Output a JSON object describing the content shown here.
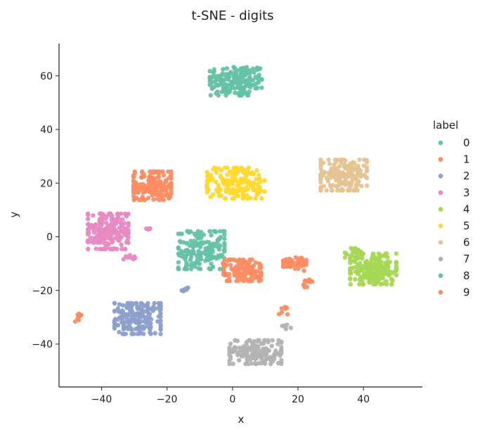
{
  "chart_data": {
    "type": "scatter",
    "title": "t-SNE - digits",
    "xlabel": "x",
    "ylabel": "y",
    "xlim": [
      -53,
      58
    ],
    "ylim": [
      -56,
      72
    ],
    "xticks": [
      -40,
      -20,
      0,
      20,
      40
    ],
    "yticks": [
      -40,
      -20,
      0,
      20,
      40,
      60
    ],
    "grid": false,
    "legend_title": "label",
    "legend_position": "right",
    "colors": {
      "0": "#66c2a5",
      "1": "#fc8d62",
      "2": "#8da0cb",
      "3": "#e78ac3",
      "4": "#a6d854",
      "5": "#ffd92f",
      "6": "#e5c494",
      "7": "#b3b3b3",
      "8": "#66c2a5",
      "9": "#fc8d62"
    },
    "series": [
      {
        "name": "0",
        "clusters": [
          {
            "cx": 1,
            "cy": 58,
            "rx": 9,
            "ry": 6,
            "n": 180
          }
        ]
      },
      {
        "name": "1",
        "clusters": [
          {
            "cx": -24.5,
            "cy": 19,
            "rx": 6.5,
            "ry": 6,
            "n": 180
          },
          {
            "cx": -47,
            "cy": -30,
            "rx": 1.2,
            "ry": 1.8,
            "n": 10
          },
          {
            "cx": 15.5,
            "cy": -28,
            "rx": 1.5,
            "ry": 2,
            "n": 8
          }
        ]
      },
      {
        "name": "2",
        "clusters": [
          {
            "cx": -29,
            "cy": -30.5,
            "rx": 8,
            "ry": 6.5,
            "n": 180
          },
          {
            "cx": -14.5,
            "cy": -19.5,
            "rx": 1.5,
            "ry": 1,
            "n": 8
          }
        ]
      },
      {
        "name": "3",
        "clusters": [
          {
            "cx": -38,
            "cy": 2,
            "rx": 7,
            "ry": 7.5,
            "n": 180
          },
          {
            "cx": -31.5,
            "cy": -7.5,
            "rx": 2,
            "ry": 1,
            "n": 8
          },
          {
            "cx": -26,
            "cy": 3,
            "rx": 1.2,
            "ry": 1.2,
            "n": 5
          }
        ]
      },
      {
        "name": "4",
        "clusters": [
          {
            "cx": 43,
            "cy": -12,
            "rx": 8,
            "ry": 6.5,
            "n": 190
          },
          {
            "cx": 37,
            "cy": -6,
            "rx": 3,
            "ry": 2,
            "n": 20
          }
        ]
      },
      {
        "name": "5",
        "clusters": [
          {
            "cx": 1,
            "cy": 20,
            "rx": 10,
            "ry": 6.5,
            "n": 180
          }
        ]
      },
      {
        "name": "6",
        "clusters": [
          {
            "cx": 34,
            "cy": 23,
            "rx": 8,
            "ry": 6.5,
            "n": 180
          }
        ]
      },
      {
        "name": "7",
        "clusters": [
          {
            "cx": 7,
            "cy": -43,
            "rx": 9,
            "ry": 5,
            "n": 180
          },
          {
            "cx": 16.5,
            "cy": -33.5,
            "rx": 1.5,
            "ry": 1,
            "n": 6
          }
        ]
      },
      {
        "name": "8",
        "clusters": [
          {
            "cx": -9.5,
            "cy": -5,
            "rx": 8,
            "ry": 8,
            "n": 180
          }
        ]
      },
      {
        "name": "9",
        "clusters": [
          {
            "cx": 3,
            "cy": -12.5,
            "rx": 6.5,
            "ry": 4.5,
            "n": 140
          },
          {
            "cx": 19,
            "cy": -10,
            "rx": 4,
            "ry": 3,
            "n": 50
          },
          {
            "cx": 23,
            "cy": -17,
            "rx": 1.5,
            "ry": 2,
            "n": 12
          }
        ]
      }
    ]
  }
}
